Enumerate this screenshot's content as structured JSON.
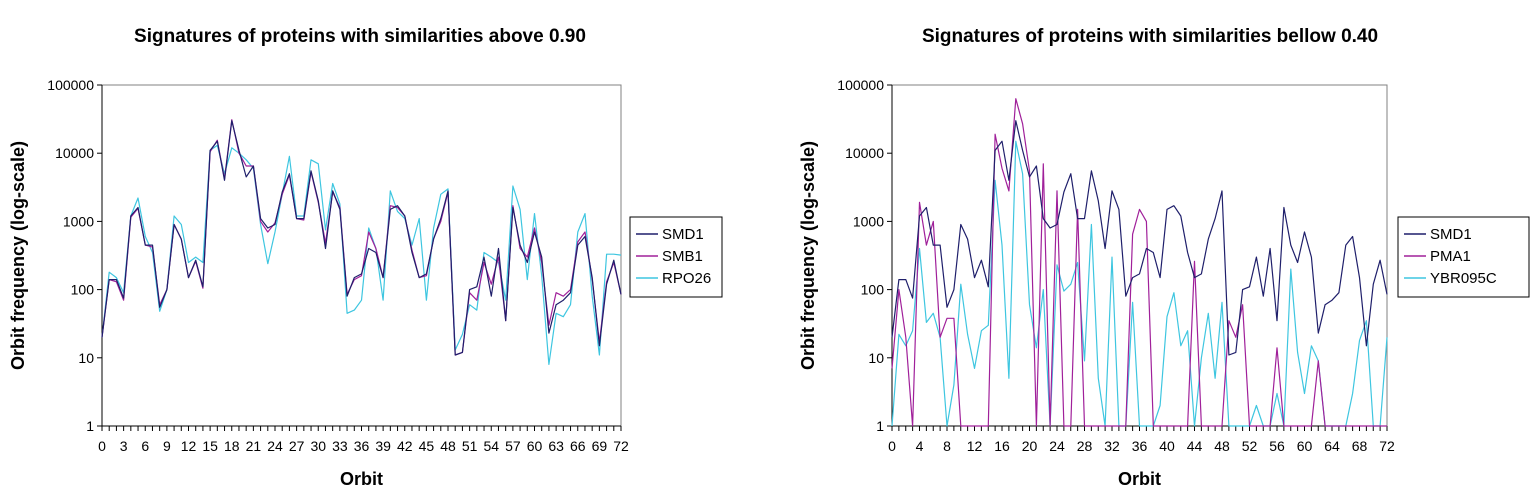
{
  "chart_data": [
    {
      "type": "line",
      "title": "Signatures of proteins with similarities above 0.90",
      "xlabel": "Orbit",
      "ylabel": "Orbit frequency (log-scale)",
      "yscale": "log",
      "ylim": [
        1,
        100000
      ],
      "xlim": [
        0,
        72
      ],
      "x_tick_labels": [
        "0",
        "3",
        "6",
        "9",
        "12",
        "15",
        "18",
        "21",
        "24",
        "27",
        "30",
        "33",
        "36",
        "39",
        "42",
        "45",
        "48",
        "51",
        "54",
        "57",
        "60",
        "63",
        "66",
        "69",
        "72"
      ],
      "y_tick_labels": [
        "1",
        "10",
        "100",
        "1000",
        "10000",
        "100000"
      ],
      "legend_position": "right",
      "series": [
        {
          "name": "SMD1",
          "color": "#1f1f6b",
          "values": [
            20,
            140,
            140,
            75,
            1200,
            1600,
            450,
            450,
            55,
            100,
            900,
            550,
            150,
            270,
            110,
            11000,
            15000,
            4000,
            30000,
            11000,
            4500,
            6500,
            1100,
            800,
            900,
            2700,
            5000,
            1100,
            1100,
            5500,
            2000,
            400,
            2800,
            1500,
            80,
            150,
            170,
            400,
            350,
            150,
            1500,
            1700,
            1200,
            350,
            150,
            170,
            550,
            1100,
            2800,
            11,
            12,
            100,
            110,
            300,
            80,
            400,
            35,
            1600,
            450,
            250,
            700,
            300,
            23,
            60,
            70,
            90,
            450,
            600,
            150,
            15,
            120,
            270,
            85
          ]
        },
        {
          "name": "SMB1",
          "color": "#a0209a",
          "values": [
            20,
            140,
            130,
            70,
            1150,
            1550,
            450,
            420,
            60,
            100,
            900,
            550,
            150,
            260,
            105,
            10500,
            15500,
            4200,
            31000,
            10000,
            6500,
            6500,
            1000,
            700,
            950,
            2500,
            4800,
            1100,
            1050,
            5300,
            1900,
            480,
            2700,
            1600,
            85,
            140,
            160,
            700,
            400,
            150,
            1700,
            1600,
            1200,
            380,
            150,
            160,
            560,
            1000,
            2700,
            11,
            12,
            90,
            70,
            250,
            120,
            300,
            35,
            1700,
            400,
            300,
            800,
            250,
            30,
            90,
            80,
            100,
            500,
            700,
            140,
            17,
            130,
            250,
            85
          ]
        },
        {
          "name": "RPO26",
          "color": "#3ec6e0",
          "values": [
            20,
            180,
            150,
            90,
            1200,
            2200,
            600,
            350,
            48,
            100,
            1200,
            900,
            250,
            300,
            250,
            11000,
            13000,
            5000,
            12000,
            10000,
            8000,
            6000,
            900,
            240,
            700,
            2500,
            9000,
            1200,
            1200,
            8000,
            7000,
            750,
            3600,
            1800,
            45,
            50,
            70,
            800,
            400,
            70,
            2800,
            1400,
            1100,
            450,
            1100,
            70,
            800,
            2500,
            3000,
            13,
            22,
            60,
            50,
            350,
            300,
            250,
            70,
            3300,
            1500,
            140,
            1300,
            160,
            8,
            45,
            40,
            60,
            700,
            1300,
            80,
            11,
            330,
            330,
            320
          ]
        }
      ]
    },
    {
      "type": "line",
      "title": "Signatures of proteins with similarities bellow 0.40",
      "xlabel": "Orbit",
      "ylabel": "Orbit frequency (log-scale)",
      "yscale": "log",
      "ylim": [
        1,
        100000
      ],
      "xlim": [
        0,
        72
      ],
      "x_tick_labels": [
        "0",
        "4",
        "8",
        "12",
        "16",
        "20",
        "24",
        "28",
        "32",
        "36",
        "40",
        "44",
        "48",
        "52",
        "56",
        "60",
        "64",
        "68",
        "72"
      ],
      "y_tick_labels": [
        "1",
        "10",
        "100",
        "1000",
        "10000",
        "100000"
      ],
      "legend_position": "right",
      "series": [
        {
          "name": "SMD1",
          "color": "#1f1f6b",
          "values": [
            20,
            140,
            140,
            75,
            1200,
            1600,
            450,
            450,
            55,
            100,
            900,
            550,
            150,
            270,
            110,
            11000,
            15000,
            4000,
            30000,
            11000,
            4500,
            6500,
            1100,
            800,
            900,
            2700,
            5000,
            1100,
            1100,
            5500,
            2000,
            400,
            2800,
            1500,
            80,
            150,
            170,
            400,
            350,
            150,
            1500,
            1700,
            1200,
            350,
            150,
            170,
            550,
            1100,
            2800,
            11,
            12,
            100,
            110,
            300,
            80,
            400,
            35,
            1600,
            450,
            250,
            700,
            300,
            23,
            60,
            70,
            90,
            450,
            600,
            150,
            15,
            120,
            270,
            85
          ]
        },
        {
          "name": "PMA1",
          "color": "#a0209a",
          "values": [
            7,
            100,
            20,
            1,
            1900,
            450,
            1000,
            20,
            38,
            38,
            1,
            1,
            1,
            1,
            1,
            19000,
            6000,
            2800,
            63000,
            27000,
            5500,
            1,
            7000,
            1,
            2800,
            1,
            1,
            1500,
            1,
            1,
            1,
            1,
            1,
            1,
            1,
            650,
            1500,
            1000,
            1,
            1,
            1,
            1,
            1,
            1,
            260,
            1,
            1,
            1,
            1,
            35,
            20,
            60,
            1,
            1,
            1,
            1,
            14,
            1,
            1,
            1,
            1,
            1,
            9,
            1,
            1,
            1,
            1,
            1,
            1,
            1,
            1,
            1,
            1
          ]
        },
        {
          "name": "YBR095C",
          "color": "#3ec6e0",
          "values": [
            1,
            22,
            15,
            25,
            400,
            33,
            45,
            20,
            1,
            4,
            120,
            22,
            7,
            25,
            30,
            4000,
            450,
            5,
            15000,
            5000,
            60,
            14,
            100,
            1,
            230,
            95,
            120,
            250,
            9,
            900,
            5,
            1,
            300,
            1,
            1,
            65,
            1,
            1,
            1,
            2,
            40,
            90,
            15,
            25,
            1,
            10,
            45,
            5,
            65,
            1,
            1,
            1,
            1,
            2,
            1,
            1,
            3,
            1,
            200,
            12,
            3,
            15,
            9,
            1,
            1,
            1,
            1,
            3,
            18,
            35,
            1,
            1,
            20
          ]
        }
      ]
    }
  ]
}
